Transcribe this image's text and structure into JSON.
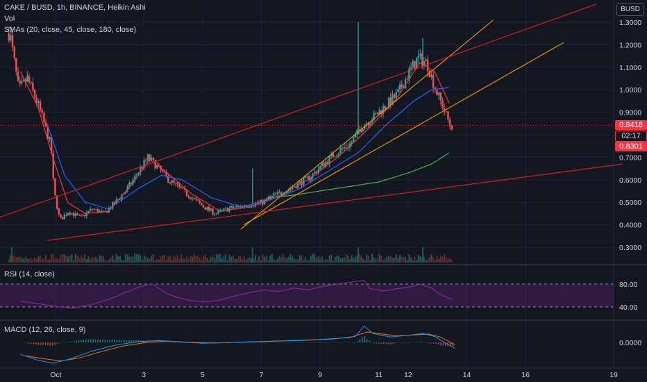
{
  "header": {
    "symbol_title": "CAKE / BUSD, 1h, BINANCE, Heikin Ashi",
    "volume_label": "Vol",
    "sma_label": "SMAs (20, close, 45, close, 180, close)",
    "quote_currency": "BUSD"
  },
  "rsi_label": "RSI (14, close)",
  "macd_label": "MACD (12, 26, close, 9)",
  "badges": {
    "last_price": "0.8418",
    "countdown": "02:17",
    "sma_value": "0.8301"
  },
  "colors": {
    "background": "#131722",
    "up": "#26a69a",
    "down": "#ef5350",
    "sma20": "#f23645",
    "sma45": "#2962ff",
    "sma180": "#4caf50",
    "trend_red": "#e91e1e",
    "trend_orange": "#ff9800",
    "rsi": "#9c27b0",
    "macd": "#2196f3",
    "signal": "#ff6d00"
  },
  "chart_data": [
    {
      "type": "candlestick",
      "title": "CAKE / BUSD, 1h, BINANCE, Heikin Ashi",
      "x_ticks": [
        "Oct",
        "3",
        "5",
        "7",
        "9",
        "11",
        "12",
        "14",
        "16",
        "19"
      ],
      "y_ticks": [
        "1.3000",
        "1.2000",
        "1.1000",
        "1.0000",
        "0.9000",
        "0.8000",
        "0.7000",
        "0.6000",
        "0.5000",
        "0.4000",
        "0.3000"
      ],
      "ylim": [
        0.3,
        1.3
      ],
      "x_range_days": [
        -1.9,
        19
      ],
      "price_path": [
        [
          -1.5,
          1.25
        ],
        [
          -1.2,
          1.0
        ],
        [
          -0.9,
          1.05
        ],
        [
          -0.5,
          0.92
        ],
        [
          -0.1,
          0.75
        ],
        [
          0.0,
          0.55
        ],
        [
          0.2,
          0.42
        ],
        [
          0.5,
          0.46
        ],
        [
          0.9,
          0.43
        ],
        [
          1.3,
          0.47
        ],
        [
          1.7,
          0.45
        ],
        [
          2.1,
          0.5
        ],
        [
          2.5,
          0.56
        ],
        [
          2.9,
          0.64
        ],
        [
          3.2,
          0.7
        ],
        [
          3.5,
          0.66
        ],
        [
          3.9,
          0.6
        ],
        [
          4.3,
          0.56
        ],
        [
          4.7,
          0.52
        ],
        [
          5.1,
          0.48
        ],
        [
          5.5,
          0.45
        ],
        [
          5.9,
          0.47
        ],
        [
          6.3,
          0.48
        ],
        [
          6.7,
          0.49
        ],
        [
          7.1,
          0.5
        ],
        [
          7.5,
          0.53
        ],
        [
          7.9,
          0.55
        ],
        [
          8.3,
          0.58
        ],
        [
          8.7,
          0.61
        ],
        [
          9.1,
          0.66
        ],
        [
          9.6,
          0.72
        ],
        [
          10.1,
          0.76
        ],
        [
          10.5,
          0.84
        ],
        [
          10.9,
          0.88
        ],
        [
          11.3,
          0.93
        ],
        [
          11.7,
          0.98
        ],
        [
          12.1,
          1.08
        ],
        [
          12.4,
          1.14
        ],
        [
          12.7,
          1.12
        ],
        [
          13.0,
          1.0
        ],
        [
          13.2,
          0.94
        ],
        [
          13.5,
          0.84
        ]
      ],
      "candle_count": 240,
      "spikes": [
        {
          "x": 10.3,
          "high": 1.3
        },
        {
          "x": 12.5,
          "high": 1.23
        },
        {
          "x": 6.7,
          "high": 0.65
        },
        {
          "x": -1.5,
          "high": 1.28
        }
      ],
      "sma20": [
        [
          -1.2,
          1.08
        ],
        [
          -0.6,
          0.92
        ],
        [
          -0.1,
          0.7
        ],
        [
          0.4,
          0.5
        ],
        [
          1.0,
          0.45
        ],
        [
          1.8,
          0.46
        ],
        [
          2.6,
          0.58
        ],
        [
          3.2,
          0.69
        ],
        [
          3.8,
          0.63
        ],
        [
          4.6,
          0.54
        ],
        [
          5.6,
          0.46
        ],
        [
          6.6,
          0.48
        ],
        [
          7.6,
          0.53
        ],
        [
          8.6,
          0.6
        ],
        [
          9.6,
          0.7
        ],
        [
          10.6,
          0.82
        ],
        [
          11.6,
          0.96
        ],
        [
          12.4,
          1.12
        ],
        [
          12.9,
          1.08
        ],
        [
          13.4,
          0.94
        ]
      ],
      "sma45": [
        [
          -0.3,
          0.85
        ],
        [
          0.3,
          0.62
        ],
        [
          1.0,
          0.5
        ],
        [
          1.8,
          0.47
        ],
        [
          2.8,
          0.56
        ],
        [
          3.6,
          0.62
        ],
        [
          4.3,
          0.6
        ],
        [
          5.3,
          0.52
        ],
        [
          6.3,
          0.48
        ],
        [
          7.3,
          0.51
        ],
        [
          8.3,
          0.56
        ],
        [
          9.3,
          0.64
        ],
        [
          10.3,
          0.72
        ],
        [
          11.3,
          0.85
        ],
        [
          12.2,
          0.95
        ],
        [
          12.8,
          1.0
        ],
        [
          13.4,
          1.01
        ]
      ],
      "sma180": [
        [
          7.2,
          0.52
        ],
        [
          8.0,
          0.53
        ],
        [
          9.0,
          0.55
        ],
        [
          10.0,
          0.57
        ],
        [
          11.0,
          0.59
        ],
        [
          12.0,
          0.63
        ],
        [
          12.8,
          0.67
        ],
        [
          13.4,
          0.72
        ]
      ],
      "trendlines": [
        {
          "color": "orange",
          "from": [
            6.3,
            0.38
          ],
          "to": [
            14.9,
            1.31
          ]
        },
        {
          "color": "orange",
          "from": [
            6.4,
            0.4
          ],
          "to": [
            17.3,
            1.21
          ]
        },
        {
          "color": "red",
          "from": [
            -2.2,
            0.42
          ],
          "to": [
            18.4,
            1.38
          ]
        },
        {
          "color": "red",
          "from": [
            -0.3,
            0.33
          ],
          "to": [
            19.3,
            0.67
          ]
        }
      ],
      "price_lines": {
        "last_price": 0.8418,
        "sma_value": 0.8301
      }
    },
    {
      "type": "line",
      "title": "RSI (14, close)",
      "y_ticks": [
        "80.00",
        "40.00"
      ],
      "bands": [
        30,
        70
      ],
      "ylim": [
        15,
        90
      ],
      "path": [
        [
          -1.2,
          40
        ],
        [
          -0.5,
          35
        ],
        [
          0.1,
          30
        ],
        [
          0.6,
          28
        ],
        [
          1.2,
          34
        ],
        [
          1.9,
          45
        ],
        [
          2.4,
          56
        ],
        [
          2.9,
          66
        ],
        [
          3.3,
          70
        ],
        [
          3.7,
          56
        ],
        [
          4.1,
          47
        ],
        [
          4.6,
          41
        ],
        [
          5.1,
          39
        ],
        [
          5.6,
          42
        ],
        [
          6.0,
          48
        ],
        [
          6.6,
          55
        ],
        [
          7.1,
          60
        ],
        [
          7.6,
          57
        ],
        [
          8.1,
          63
        ],
        [
          8.6,
          60
        ],
        [
          9.1,
          66
        ],
        [
          9.6,
          70
        ],
        [
          10.1,
          74
        ],
        [
          10.5,
          76
        ],
        [
          10.7,
          62
        ],
        [
          11.2,
          58
        ],
        [
          11.6,
          62
        ],
        [
          12.0,
          64
        ],
        [
          12.4,
          70
        ],
        [
          12.8,
          63
        ],
        [
          13.1,
          52
        ],
        [
          13.5,
          43
        ]
      ]
    },
    {
      "type": "line",
      "title": "MACD (12, 26, close, 9)",
      "y_ticks": [
        "0.0000"
      ],
      "macd": [
        [
          -1.2,
          -0.04
        ],
        [
          -0.6,
          -0.06
        ],
        [
          -0.1,
          -0.07
        ],
        [
          0.5,
          -0.055
        ],
        [
          1.2,
          -0.03
        ],
        [
          2.0,
          -0.01
        ],
        [
          2.8,
          0.003
        ],
        [
          3.5,
          0.006
        ],
        [
          4.2,
          0.002
        ],
        [
          5.0,
          -0.003
        ],
        [
          5.8,
          -0.001
        ],
        [
          6.6,
          0.002
        ],
        [
          7.5,
          0.004
        ],
        [
          8.5,
          0.007
        ],
        [
          9.5,
          0.012
        ],
        [
          10.2,
          0.02
        ],
        [
          10.5,
          0.055
        ],
        [
          10.8,
          0.03
        ],
        [
          11.4,
          0.018
        ],
        [
          12.0,
          0.024
        ],
        [
          12.5,
          0.03
        ],
        [
          12.9,
          0.02
        ],
        [
          13.3,
          -0.004
        ],
        [
          13.6,
          -0.02
        ]
      ],
      "signal": [
        [
          -1.0,
          -0.045
        ],
        [
          -0.4,
          -0.055
        ],
        [
          0.2,
          -0.062
        ],
        [
          0.8,
          -0.052
        ],
        [
          1.5,
          -0.032
        ],
        [
          2.3,
          -0.012
        ],
        [
          3.1,
          0.0
        ],
        [
          3.8,
          0.004
        ],
        [
          4.5,
          0.001
        ],
        [
          5.3,
          -0.002
        ],
        [
          6.1,
          0.0
        ],
        [
          7.0,
          0.003
        ],
        [
          8.0,
          0.006
        ],
        [
          9.0,
          0.01
        ],
        [
          10.0,
          0.016
        ],
        [
          10.6,
          0.035
        ],
        [
          11.0,
          0.03
        ],
        [
          11.6,
          0.022
        ],
        [
          12.2,
          0.025
        ],
        [
          12.7,
          0.028
        ],
        [
          13.1,
          0.018
        ],
        [
          13.6,
          -0.008
        ]
      ],
      "ylim": [
        -0.08,
        0.06
      ]
    }
  ]
}
